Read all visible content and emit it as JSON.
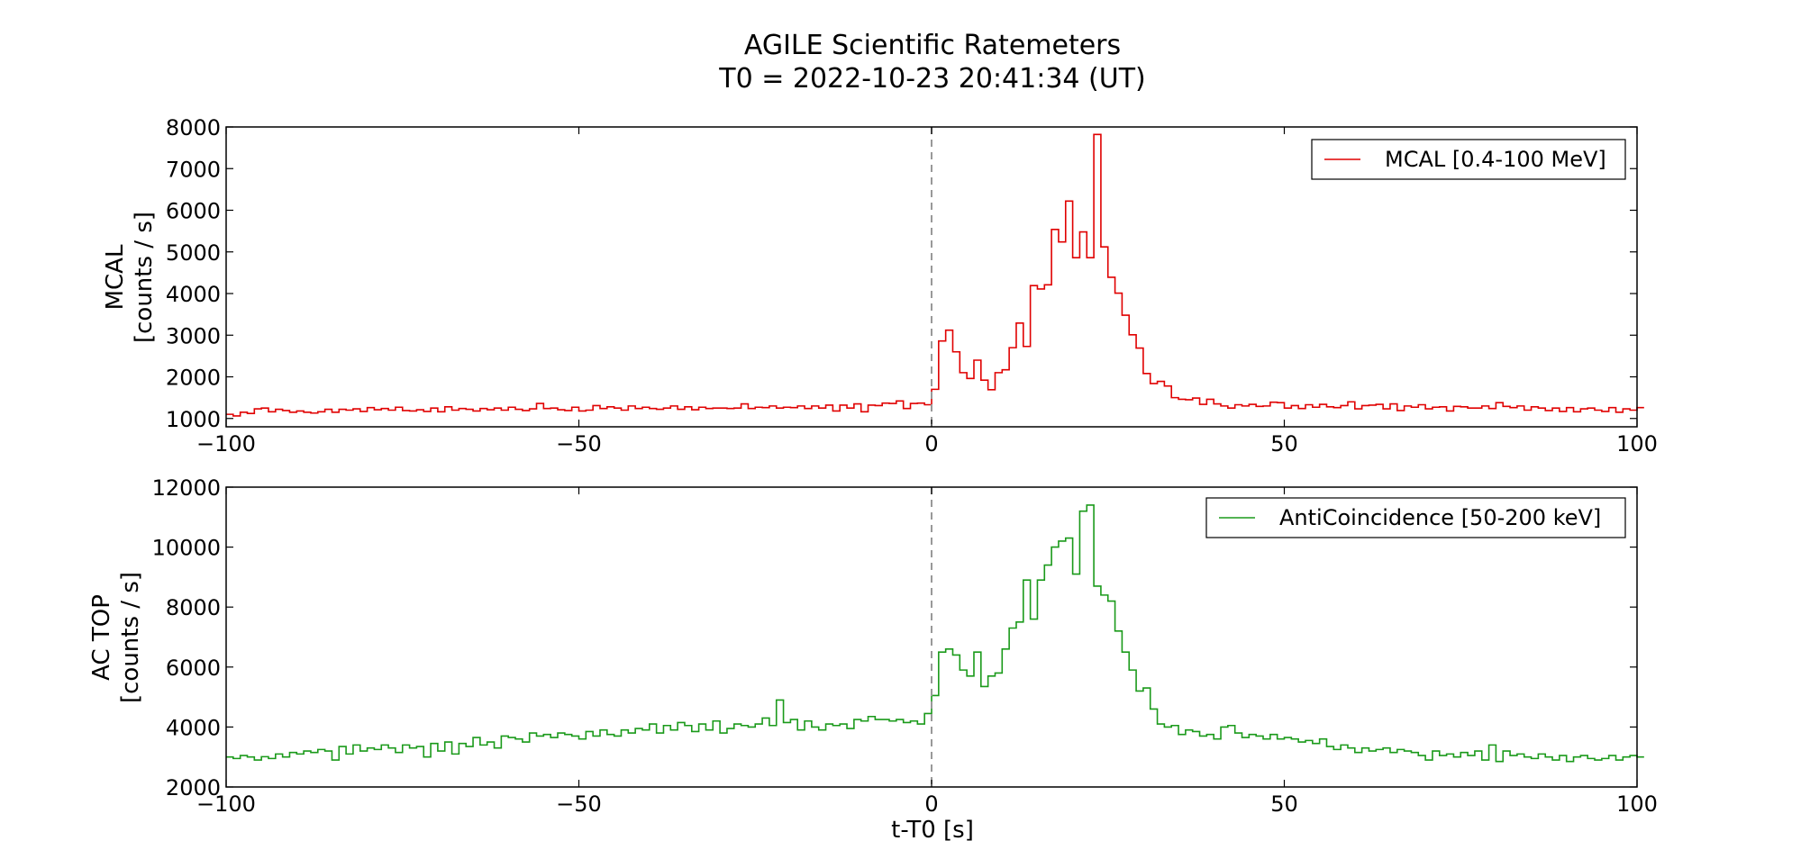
{
  "title": {
    "line1": "AGILE Scientific Ratemeters",
    "line2": "T0 = 2022-10-23 20:41:34 (UT)"
  },
  "chart_data": [
    {
      "type": "line",
      "drawstyle": "steps",
      "panel": "top",
      "ylabel_line1": "MCAL",
      "ylabel_line2": "[counts / s]",
      "xlim": [
        -100,
        100
      ],
      "ylim": [
        800,
        8000
      ],
      "xticks": [
        -100,
        -50,
        0,
        50,
        100
      ],
      "xtick_labels": [
        "−100",
        "−50",
        "0",
        "50",
        "100"
      ],
      "yticks": [
        1000,
        2000,
        3000,
        4000,
        5000,
        6000,
        7000,
        8000
      ],
      "ytick_labels": [
        "1000",
        "2000",
        "3000",
        "4000",
        "5000",
        "6000",
        "7000",
        "8000"
      ],
      "legend": "top-right",
      "series_color": "#e00000",
      "t0_marker_x": 0,
      "series": [
        {
          "name": "MCAL [0.4-100 MeV]",
          "bin_width": 1,
          "x_start": -100,
          "values": [
            1100,
            1060,
            1150,
            1120,
            1230,
            1250,
            1160,
            1220,
            1190,
            1150,
            1180,
            1150,
            1130,
            1160,
            1220,
            1150,
            1220,
            1200,
            1230,
            1170,
            1260,
            1210,
            1240,
            1200,
            1270,
            1190,
            1180,
            1210,
            1170,
            1250,
            1160,
            1280,
            1200,
            1240,
            1220,
            1180,
            1240,
            1210,
            1250,
            1200,
            1270,
            1220,
            1190,
            1230,
            1360,
            1240,
            1250,
            1210,
            1190,
            1270,
            1180,
            1200,
            1310,
            1240,
            1280,
            1250,
            1200,
            1300,
            1240,
            1270,
            1240,
            1220,
            1250,
            1300,
            1220,
            1280,
            1210,
            1270,
            1240,
            1250,
            1250,
            1240,
            1250,
            1350,
            1240,
            1270,
            1260,
            1300,
            1250,
            1270,
            1260,
            1300,
            1240,
            1300,
            1250,
            1320,
            1180,
            1320,
            1250,
            1350,
            1160,
            1320,
            1310,
            1370,
            1360,
            1420,
            1240,
            1360,
            1370,
            1330,
            1700,
            2860,
            3120,
            2600,
            2100,
            1960,
            2400,
            1920,
            1690,
            2100,
            2170,
            2700,
            3290,
            2730,
            4190,
            4110,
            4210,
            5540,
            5240,
            6220,
            4860,
            5480,
            4860,
            7820,
            5120,
            4390,
            4010,
            3480,
            3010,
            2690,
            2080,
            1840,
            1890,
            1780,
            1500,
            1460,
            1450,
            1490,
            1340,
            1460,
            1350,
            1300,
            1250,
            1330,
            1300,
            1340,
            1290,
            1300,
            1390,
            1380,
            1250,
            1310,
            1240,
            1330,
            1270,
            1340,
            1280,
            1260,
            1310,
            1400,
            1230,
            1310,
            1320,
            1340,
            1230,
            1350,
            1190,
            1300,
            1270,
            1330,
            1230,
            1270,
            1280,
            1180,
            1290,
            1280,
            1250,
            1250,
            1300,
            1240,
            1380,
            1290,
            1260,
            1300,
            1200,
            1280,
            1250,
            1190,
            1250,
            1170,
            1260,
            1160,
            1230,
            1250,
            1200,
            1170,
            1260,
            1150,
            1230,
            1200,
            1260
          ]
        }
      ]
    },
    {
      "type": "line",
      "drawstyle": "steps",
      "panel": "bottom",
      "ylabel_line1": "AC TOP",
      "ylabel_line2": "[counts / s]",
      "xlabel": "t-T0 [s]",
      "xlim": [
        -100,
        100
      ],
      "ylim": [
        2000,
        12000
      ],
      "xticks": [
        -100,
        -50,
        0,
        50,
        100
      ],
      "xtick_labels": [
        "−100",
        "−50",
        "0",
        "50",
        "100"
      ],
      "yticks": [
        2000,
        4000,
        6000,
        8000,
        10000,
        12000
      ],
      "ytick_labels": [
        "2000",
        "4000",
        "6000",
        "8000",
        "10000",
        "12000"
      ],
      "legend": "top-right",
      "series_color": "#1a9a1a",
      "t0_marker_x": 0,
      "series": [
        {
          "name": "AntiCoincidence [50-200 keV]",
          "bin_width": 1,
          "x_start": -100,
          "values": [
            3000,
            2950,
            3050,
            3000,
            2900,
            3010,
            2950,
            3100,
            3000,
            3150,
            3100,
            3200,
            3150,
            3250,
            3200,
            2900,
            3350,
            3100,
            3400,
            3200,
            3300,
            3250,
            3400,
            3300,
            3150,
            3400,
            3300,
            3350,
            3000,
            3450,
            3200,
            3500,
            3100,
            3450,
            3350,
            3650,
            3400,
            3500,
            3300,
            3700,
            3650,
            3600,
            3500,
            3800,
            3700,
            3750,
            3650,
            3800,
            3750,
            3700,
            3600,
            3850,
            3700,
            3900,
            3750,
            3700,
            3900,
            3800,
            3950,
            3900,
            4100,
            3800,
            4050,
            3900,
            4150,
            4050,
            3850,
            4100,
            3900,
            4200,
            3800,
            3950,
            4100,
            4050,
            4000,
            4100,
            4300,
            4050,
            4900,
            4150,
            4250,
            3900,
            4200,
            4000,
            3900,
            4100,
            4050,
            4100,
            3950,
            4250,
            4200,
            4350,
            4250,
            4250,
            4200,
            4250,
            4150,
            4200,
            4100,
            4450,
            5050,
            6500,
            6600,
            6400,
            5900,
            5700,
            6500,
            5350,
            5700,
            5800,
            6600,
            7300,
            7500,
            8900,
            7600,
            8900,
            9400,
            10000,
            10200,
            10300,
            9100,
            11200,
            11400,
            8700,
            8400,
            8200,
            7200,
            6500,
            5900,
            5200,
            5300,
            4600,
            4100,
            4000,
            4050,
            3750,
            3900,
            3850,
            3700,
            3750,
            3600,
            4000,
            4050,
            3800,
            3650,
            3750,
            3700,
            3600,
            3750,
            3600,
            3650,
            3600,
            3500,
            3550,
            3450,
            3600,
            3350,
            3250,
            3400,
            3300,
            3150,
            3300,
            3200,
            3250,
            3300,
            3150,
            3250,
            3200,
            3150,
            3050,
            2900,
            3200,
            3050,
            3100,
            3000,
            3150,
            3050,
            3200,
            2900,
            3400,
            2850,
            3200,
            3050,
            3100,
            3000,
            2950,
            3100,
            3000,
            2900,
            3050,
            2850,
            3000,
            3050,
            2950,
            2900,
            2950,
            3050,
            2900,
            3000,
            3050,
            3000
          ]
        }
      ]
    }
  ]
}
